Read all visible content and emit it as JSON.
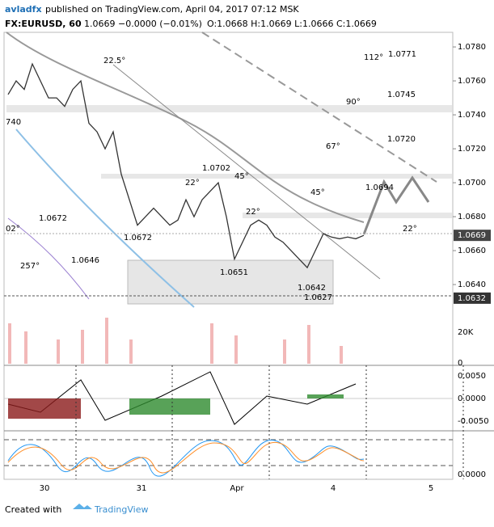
{
  "header": {
    "author": "avladfx",
    "published": "published on TradingView.com, April 04, 2017 07:12 MSK",
    "symbol": "FX:EURUSD, 60",
    "change": "1.0669 −0.0000 (−0.01%)",
    "ohlc": "O:1.0668 H:1.0669 L:1.0666 C:1.0669"
  },
  "chart_data": {
    "type": "line",
    "color": "#333333",
    "values": [
      1.0752,
      1.076,
      1.0755,
      1.077,
      1.076,
      1.075,
      1.075,
      1.0745,
      1.0755,
      1.076,
      1.0735,
      1.073,
      1.072,
      1.073,
      1.0705,
      1.069,
      1.0675,
      1.068,
      1.0685,
      1.068,
      1.0675,
      1.0678,
      1.069,
      1.068,
      1.069,
      1.0695,
      1.07,
      1.068,
      1.0655,
      1.0665,
      1.0675,
      1.0678,
      1.0675,
      1.0668,
      1.0665,
      1.066,
      1.0655,
      1.065,
      1.066,
      1.067,
      1.0668,
      1.0667,
      1.0668,
      1.0667,
      1.0669
    ],
    "ylim": [
      1.06216,
      1.07886
    ],
    "yticks": [
      {
        "value": 1.078,
        "label": "1.0780"
      },
      {
        "value": 1.076,
        "label": "1.0760"
      },
      {
        "value": 1.074,
        "label": "1.0740"
      },
      {
        "value": 1.072,
        "label": "1.0720"
      },
      {
        "value": 1.07,
        "label": "1.0700"
      },
      {
        "value": 1.068,
        "label": "1.0680"
      },
      {
        "value": 1.066,
        "label": "1.0660"
      },
      {
        "value": 1.064,
        "label": "1.0640"
      }
    ],
    "last_price": {
      "value": 1.0669,
      "label": "1.0669"
    },
    "level": {
      "value": 1.0632,
      "label": "1.0632"
    },
    "xticks": [
      "30",
      "31",
      "Apr",
      "4",
      "5"
    ]
  },
  "annotations": [
    "22.5°",
    "112°",
    "1.0771",
    "90°",
    "1.0745",
    "740",
    "67°",
    "1.0720",
    "1.0702",
    "45°",
    "22°",
    "1.0694",
    "45°",
    "1.0672",
    "22°",
    "02°",
    "22°",
    "1.0672",
    "1.0646",
    "257°",
    "1.0651",
    "1.0642",
    "1.0627"
  ],
  "volume_axis": [
    "20K",
    "0"
  ],
  "macd_axis": [
    "0.0050",
    "0.0000",
    "-0.0050"
  ],
  "stoch_axis": [
    "0.0000"
  ],
  "footer": {
    "created": "Created with",
    "brand": "TradingView"
  }
}
